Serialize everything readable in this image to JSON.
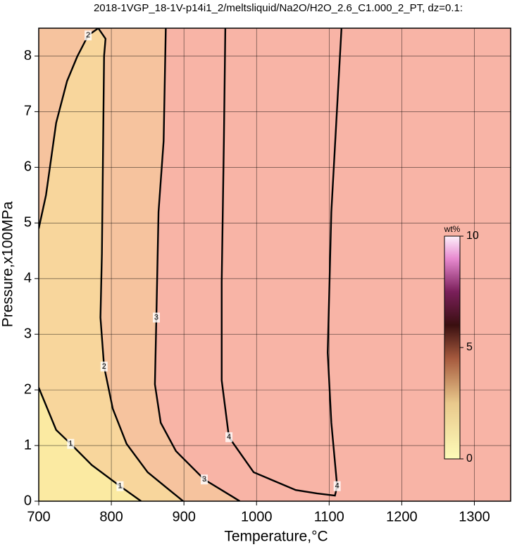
{
  "chart_data": {
    "type": "contour",
    "title": "2018-1VGP_18-1V-p14i1_2/meltsliquid/Na2O/H2O_2.6_C1.000_2_PT, dz=0.1:",
    "x_label": "Temperature,°C",
    "y_label": "Pressure,x100MPa",
    "xlim": [
      700,
      1350
    ],
    "ylim": [
      0,
      8.5
    ],
    "xticks": [
      700,
      800,
      900,
      1000,
      1100,
      1200,
      1300
    ],
    "yticks": [
      0,
      1,
      2,
      3,
      4,
      5,
      6,
      7,
      8
    ],
    "grid": true,
    "background": "#f8b4a6",
    "series": [
      {
        "name": "1",
        "color": "#000000",
        "fill": "#fbeaa2",
        "x": [
          700,
          724,
          744,
          773,
          812,
          841
        ],
        "values": [
          2.04,
          1.28,
          1.03,
          0.65,
          0.27,
          0
        ]
      },
      {
        "name": "2",
        "color": "#000000",
        "fill": "#f8d69c",
        "x": [
          700,
          710,
          724,
          739,
          753,
          768,
          782,
          792,
          790,
          787,
          785,
          790,
          802,
          821,
          850,
          880,
          899
        ],
        "values": [
          4.9,
          5.5,
          6.8,
          7.55,
          7.99,
          8.37,
          8.5,
          8.31,
          8.0,
          4.45,
          3.3,
          2.42,
          1.66,
          1.03,
          0.52,
          0.2,
          0
        ]
      },
      {
        "name": "3",
        "color": "#000000",
        "fill": "#f6c39e",
        "x": [
          875,
          872,
          865,
          862,
          860,
          868,
          889,
          928,
          967,
          977
        ],
        "values": [
          8.5,
          6.47,
          5.2,
          3.3,
          2.1,
          1.41,
          0.9,
          0.39,
          0.08,
          0
        ]
      },
      {
        "name": "4",
        "color": "#000000",
        "x": [
          957,
          955,
          952,
          952,
          962,
          996,
          1054,
          1083,
          1108,
          1111,
          1103,
          1098,
          1103,
          1117
        ],
        "values": [
          8.5,
          6.47,
          3.94,
          2.17,
          1.15,
          0.52,
          0.2,
          0.14,
          0.1,
          0.27,
          1.41,
          2.67,
          5.2,
          8.5
        ]
      }
    ],
    "colorbar": {
      "label": "wt%",
      "lim": [
        0,
        10
      ],
      "ticks": [
        0,
        5,
        10
      ]
    }
  }
}
